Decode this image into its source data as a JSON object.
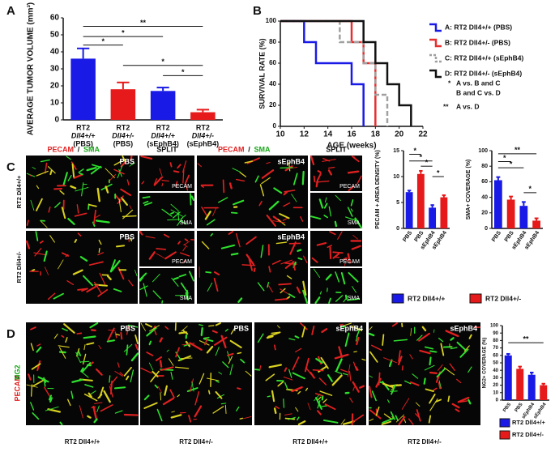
{
  "panel_letters": [
    "A",
    "B",
    "C",
    "D"
  ],
  "chart_data": [
    {
      "type": "bar",
      "ylabel": "AVERAGE TUMOR VOLUME (mm³)",
      "categories": [
        [
          "RT2",
          "Dll4+/+",
          "(PBS)"
        ],
        [
          "RT2",
          "Dll4+/-",
          "(PBS)"
        ],
        [
          "RT2",
          "Dll4+/+",
          "(sEphB4)"
        ],
        [
          "RT2",
          "Dll4+/-",
          "(sEphB4)"
        ]
      ],
      "values": [
        36,
        18,
        17,
        4.5
      ],
      "errors": [
        6,
        4,
        2,
        1.5
      ],
      "colors": [
        "#1a1ae6",
        "#e61a1a",
        "#1a1ae6",
        "#e61a1a"
      ],
      "ylim": [
        0,
        60
      ],
      "yticks": [
        0,
        10,
        20,
        30,
        40,
        50,
        60
      ],
      "annotations": [
        "**",
        "*",
        "*",
        "*",
        "*"
      ]
    },
    {
      "type": "line",
      "step": true,
      "xlabel": "AGE (weeks)",
      "ylabel": "SURVIVAL RATE (%)",
      "xlim": [
        10,
        22
      ],
      "xticks": [
        10,
        12,
        14,
        16,
        18,
        20,
        22
      ],
      "ylim": [
        0,
        100
      ],
      "yticks": [
        0,
        20,
        40,
        60,
        80,
        100
      ],
      "series": [
        {
          "name": "A: RT2 Dll4+/+ (PBS)",
          "color": "#1a1ae6",
          "dashed": false,
          "x": [
            10,
            12,
            13,
            16,
            17
          ],
          "values": [
            100,
            80,
            60,
            40,
            0
          ]
        },
        {
          "name": "B: RT2 Dll4+/- (PBS)",
          "color": "#e63030",
          "dashed": false,
          "x": [
            10,
            16,
            17,
            18
          ],
          "values": [
            100,
            80,
            60,
            0
          ]
        },
        {
          "name": "C: RT2 Dll4+/+ (sEphB4)",
          "color": "#a0a0a0",
          "dashed": true,
          "x": [
            10,
            15,
            17,
            18,
            19
          ],
          "values": [
            100,
            80,
            60,
            30,
            0
          ]
        },
        {
          "name": "D: RT2 Dll4+/- (sEphB4)",
          "color": "#111111",
          "dashed": false,
          "x": [
            10,
            17,
            18,
            19,
            20,
            21
          ],
          "values": [
            100,
            80,
            60,
            40,
            20,
            0
          ]
        }
      ],
      "notes": [
        "*",
        "A vs. B and C",
        "B and C vs. D",
        "**",
        "A vs. D"
      ]
    },
    {
      "type": "bar",
      "ylabel": "PECAM + AREA DENSITY (%)",
      "categories": [
        "PBS",
        "PBS",
        "sEphB4",
        "sEphB4"
      ],
      "values": [
        7,
        10.5,
        4,
        6
      ],
      "errors": [
        0.3,
        0.6,
        0.5,
        0.4
      ],
      "colors": [
        "#1a1ae6",
        "#e61a1a",
        "#1a1ae6",
        "#e61a1a"
      ],
      "ylim": [
        0,
        15
      ],
      "yticks": [
        0,
        5,
        10,
        15
      ],
      "annotations": [
        "*",
        "*",
        "*",
        "*"
      ],
      "legend": [
        "RT2 Dll4+/+",
        "RT2 Dll4+/-"
      ],
      "legend_colors": [
        "#1a1ae6",
        "#e61a1a"
      ]
    },
    {
      "type": "bar",
      "ylabel": "SMA+ COVERAGE (%)",
      "categories": [
        "PBS",
        "PBS",
        "sEphB4",
        "sEphB4"
      ],
      "values": [
        62,
        37,
        29,
        10
      ],
      "errors": [
        4,
        4,
        5,
        3
      ],
      "colors": [
        "#1a1ae6",
        "#e61a1a",
        "#1a1ae6",
        "#e61a1a"
      ],
      "ylim": [
        0,
        100
      ],
      "yticks": [
        0,
        20,
        40,
        60,
        80,
        100
      ],
      "annotations": [
        "**",
        "*",
        "*",
        "*"
      ]
    },
    {
      "type": "bar",
      "ylabel": "NG2+ COVERAGE (%)",
      "categories": [
        "PBS",
        "PBS",
        "sEphB4",
        "sEphB4"
      ],
      "values": [
        60,
        42,
        34,
        20
      ],
      "errors": [
        2,
        3,
        3,
        2
      ],
      "colors": [
        "#1a1ae6",
        "#e61a1a",
        "#1a1ae6",
        "#e61a1a"
      ],
      "ylim": [
        0,
        100
      ],
      "yticks": [
        0,
        10,
        20,
        30,
        40,
        50,
        60,
        70,
        80,
        90,
        100
      ],
      "annotations": [
        "**"
      ],
      "legend": [
        "RT2 Dll4+/+",
        "RT2 Dll4+/-"
      ],
      "legend_colors": [
        "#1a1ae6",
        "#e61a1a"
      ]
    }
  ],
  "panel_c": {
    "stain": [
      "PECAM",
      "/",
      "SMA"
    ],
    "split": "SPLIT",
    "treatments": [
      "PBS",
      "sEphB4"
    ],
    "split_labels": [
      "PECAM",
      "SMA"
    ],
    "genotypes": [
      "RT2 Dll4+/+",
      "RT2 Dll4+/-"
    ]
  },
  "panel_d": {
    "stain": [
      "PECAM",
      "/",
      "NG2"
    ],
    "treatments": [
      "PBS",
      "PBS",
      "sEphB4",
      "sEphB4"
    ],
    "genotypes": [
      "RT2 Dll4+/+",
      "RT2 Dll4+/-",
      "RT2 Dll4+/+",
      "RT2 Dll4+/-"
    ]
  }
}
